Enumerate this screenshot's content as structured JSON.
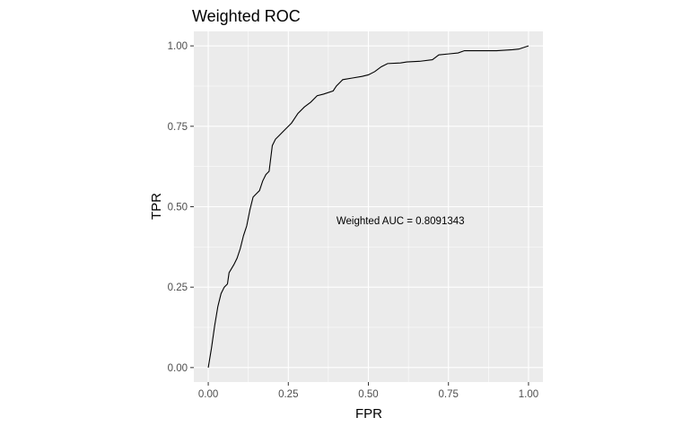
{
  "colors": {
    "panel_background": "#ebebeb",
    "grid_major": "#ffffff",
    "curve": "#000000",
    "tick": "#333333"
  },
  "chart_data": {
    "type": "line",
    "title": "Weighted ROC",
    "xlabel": "FPR",
    "ylabel": "TPR",
    "xlim": [
      -0.045,
      1.045
    ],
    "ylim": [
      -0.045,
      1.045
    ],
    "x_ticks": [
      0.0,
      0.25,
      0.5,
      0.75,
      1.0
    ],
    "x_tick_labels": [
      "0.00",
      "0.25",
      "0.50",
      "0.75",
      "1.00"
    ],
    "y_ticks": [
      0.0,
      0.25,
      0.5,
      0.75,
      1.0
    ],
    "y_tick_labels": [
      "0.00",
      "0.25",
      "0.50",
      "0.75",
      "1.00"
    ],
    "grid": true,
    "legend": "none",
    "annotation": {
      "text": "Weighted AUC = 0.8091343",
      "x": 0.6,
      "y": 0.445
    },
    "series": [
      {
        "points": [
          [
            0.0,
            0.0
          ],
          [
            0.01,
            0.06
          ],
          [
            0.02,
            0.13
          ],
          [
            0.03,
            0.19
          ],
          [
            0.04,
            0.23
          ],
          [
            0.05,
            0.25
          ],
          [
            0.06,
            0.26
          ],
          [
            0.065,
            0.295
          ],
          [
            0.08,
            0.32
          ],
          [
            0.09,
            0.34
          ],
          [
            0.1,
            0.37
          ],
          [
            0.11,
            0.41
          ],
          [
            0.12,
            0.44
          ],
          [
            0.13,
            0.49
          ],
          [
            0.14,
            0.53
          ],
          [
            0.15,
            0.54
          ],
          [
            0.16,
            0.55
          ],
          [
            0.17,
            0.58
          ],
          [
            0.18,
            0.6
          ],
          [
            0.19,
            0.61
          ],
          [
            0.2,
            0.69
          ],
          [
            0.21,
            0.71
          ],
          [
            0.22,
            0.72
          ],
          [
            0.24,
            0.74
          ],
          [
            0.26,
            0.76
          ],
          [
            0.28,
            0.79
          ],
          [
            0.3,
            0.81
          ],
          [
            0.32,
            0.825
          ],
          [
            0.34,
            0.845
          ],
          [
            0.36,
            0.85
          ],
          [
            0.39,
            0.86
          ],
          [
            0.4,
            0.875
          ],
          [
            0.42,
            0.895
          ],
          [
            0.45,
            0.9
          ],
          [
            0.48,
            0.905
          ],
          [
            0.5,
            0.91
          ],
          [
            0.52,
            0.92
          ],
          [
            0.54,
            0.935
          ],
          [
            0.56,
            0.945
          ],
          [
            0.6,
            0.947
          ],
          [
            0.62,
            0.95
          ],
          [
            0.66,
            0.952
          ],
          [
            0.7,
            0.957
          ],
          [
            0.72,
            0.972
          ],
          [
            0.75,
            0.975
          ],
          [
            0.78,
            0.978
          ],
          [
            0.8,
            0.985
          ],
          [
            0.85,
            0.985
          ],
          [
            0.9,
            0.985
          ],
          [
            0.95,
            0.988
          ],
          [
            0.97,
            0.99
          ],
          [
            1.0,
            1.0
          ]
        ]
      }
    ]
  }
}
